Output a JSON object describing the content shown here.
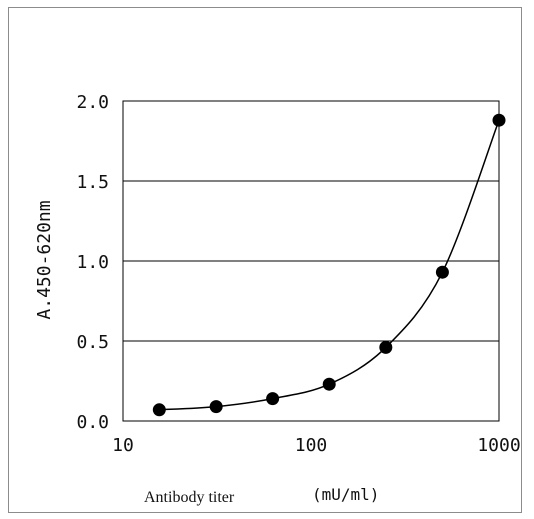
{
  "chart_data": {
    "type": "line",
    "x_scale": "log",
    "xlim": [
      10,
      1000
    ],
    "ylim": [
      0.0,
      2.0
    ],
    "x_ticks": [
      "10",
      "100",
      "1000"
    ],
    "y_ticks": [
      "2.0",
      "1.5",
      "1.0",
      "0.5",
      "0.0"
    ],
    "y_tick_values": [
      2.0,
      1.5,
      1.0,
      0.5,
      0.0
    ],
    "grid": "horizontal",
    "xlabel": "Antibody titer",
    "xunit": "(mU/ml)",
    "ylabel": "A.450-620nm",
    "series": [
      {
        "marker": "filled-circle",
        "color": "#000000",
        "x": [
          15.6,
          31.3,
          62.5,
          125,
          250,
          500,
          1000
        ],
        "y": [
          0.07,
          0.09,
          0.14,
          0.23,
          0.46,
          0.93,
          1.88
        ]
      }
    ]
  }
}
